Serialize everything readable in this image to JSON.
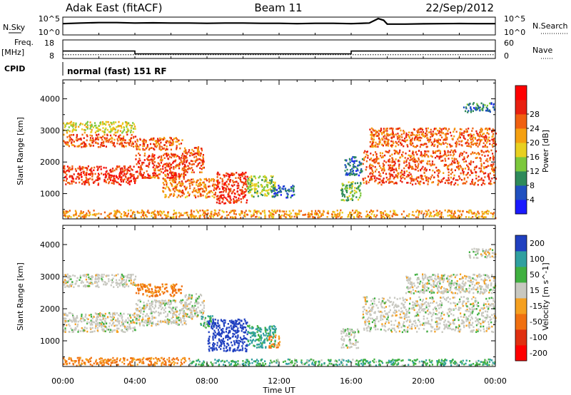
{
  "header": {
    "station": "Adak East (fitACF)",
    "beam": "Beam 11",
    "date": "22/Sep/2012"
  },
  "strips": {
    "nsky_label": "N.Sky",
    "nsearch_label": "N.Search",
    "nsky_ticks": [
      "10^5",
      "10^0"
    ],
    "nsearch_ticks": [
      "10^5",
      "10^0"
    ],
    "freq_label": "Freq.",
    "freq_unit": "[MHz]",
    "freq_ticks": [
      "18",
      "8"
    ],
    "nave_label": "Nave",
    "nave_ticks": [
      "60",
      "0"
    ],
    "cpid_label": "CPID",
    "cpid_text": "normal (fast) 151 RF"
  },
  "axes": {
    "ylabel": "Slant Range [km]",
    "xlabel": "Time UT",
    "yticks": [
      "1000",
      "2000",
      "3000",
      "4000"
    ],
    "xticks": [
      "00:00",
      "04:00",
      "08:00",
      "12:00",
      "16:00",
      "20:00",
      "00:00"
    ]
  },
  "colors": {
    "ground_scatter": "#c8c8c0",
    "power_scale": [
      "#1a1aff",
      "#2050c0",
      "#2e8a5a",
      "#7cc83c",
      "#e8d020",
      "#f5a010",
      "#f06010",
      "#e82010",
      "#ff0000"
    ],
    "velocity_scale": [
      "#2040c0",
      "#30a0a0",
      "#40b040",
      "#c8c8c0",
      "#f5a020",
      "#f07010",
      "#e03010",
      "#ff0000"
    ]
  },
  "chart_data": [
    {
      "type": "line",
      "title": "N.Sky / N.Search",
      "x": [
        0,
        1,
        2,
        3,
        4,
        5,
        6,
        7,
        8,
        9,
        10,
        11,
        12,
        13,
        14,
        15,
        16,
        17,
        17.5,
        17.8,
        18,
        19,
        20,
        21,
        22,
        23,
        24
      ],
      "series": [
        {
          "name": "N.Sky",
          "values": [
            2000,
            3000,
            4000,
            4000,
            3000,
            3500,
            3000,
            3000,
            2500,
            3000,
            3000,
            2500,
            2500,
            2000,
            2500,
            2500,
            2000,
            3000,
            60000,
            20000,
            1500,
            1500,
            1800,
            2000,
            2200,
            2000,
            2000
          ]
        },
        {
          "name": "N.Search",
          "values": [
            1,
            1,
            1,
            1,
            1,
            1,
            1,
            1,
            1,
            1,
            1,
            1,
            1,
            1,
            1,
            1,
            1,
            1,
            1,
            1,
            1,
            1,
            1,
            1,
            1,
            1,
            1
          ]
        }
      ],
      "yscale": "log",
      "xlim": [
        0,
        24
      ],
      "ylim": [
        1,
        100000
      ]
    },
    {
      "type": "line",
      "title": "Freq. / Nave",
      "x": [
        0,
        4,
        4,
        16,
        16,
        24
      ],
      "series": [
        {
          "name": "Freq.",
          "values": [
            12,
            12,
            10.5,
            10.5,
            12,
            12
          ]
        },
        {
          "name": "Nave",
          "values": [
            12,
            12,
            12,
            12,
            12,
            12
          ]
        }
      ],
      "xlim": [
        0,
        24
      ],
      "ylim": [
        8,
        18
      ]
    },
    {
      "type": "heatmap",
      "title": "Power [dB]",
      "xlabel": "Time UT",
      "ylabel": "Slant Range [km]",
      "xlim": [
        0,
        24
      ],
      "ylim": [
        200,
        4600
      ],
      "colorbar_label": "Power [dB]",
      "colorbar_ticks": [
        4,
        8,
        12,
        16,
        20,
        24,
        28
      ],
      "colorbar_range": [
        0,
        32
      ],
      "regions": [
        {
          "t": [
            0.0,
            4.0
          ],
          "r": [
            1300,
            1900
          ],
          "value": 29
        },
        {
          "t": [
            0.0,
            4.0
          ],
          "r": [
            2500,
            2900
          ],
          "value": 27
        },
        {
          "t": [
            0.0,
            4.0
          ],
          "r": [
            2950,
            3300
          ],
          "value": 18
        },
        {
          "t": [
            4.0,
            6.8
          ],
          "r": [
            1500,
            2300
          ],
          "value": 28
        },
        {
          "t": [
            4.0,
            6.6
          ],
          "r": [
            2400,
            2800
          ],
          "value": 26
        },
        {
          "t": [
            6.6,
            7.8
          ],
          "r": [
            1700,
            2500
          ],
          "value": 27
        },
        {
          "t": [
            5.5,
            8.5
          ],
          "r": [
            900,
            1500
          ],
          "value": 24
        },
        {
          "t": [
            8.5,
            10.2
          ],
          "r": [
            700,
            1700
          ],
          "value": 29
        },
        {
          "t": [
            10.2,
            11.8
          ],
          "r": [
            900,
            1600
          ],
          "value": 15
        },
        {
          "t": [
            11.6,
            12.8
          ],
          "r": [
            900,
            1300
          ],
          "value": 7
        },
        {
          "t": [
            15.4,
            16.5
          ],
          "r": [
            800,
            1400
          ],
          "value": 13
        },
        {
          "t": [
            15.6,
            16.6
          ],
          "r": [
            1600,
            2200
          ],
          "value": 7
        },
        {
          "t": [
            16.6,
            24.0
          ],
          "r": [
            1300,
            2400
          ],
          "value": 27
        },
        {
          "t": [
            17.0,
            24.0
          ],
          "r": [
            2500,
            3100
          ],
          "value": 26
        },
        {
          "t": [
            22.2,
            24.0
          ],
          "r": [
            3600,
            3900
          ],
          "value": 8
        },
        {
          "t": [
            0.0,
            24.0
          ],
          "r": [
            250,
            500
          ],
          "value": 23
        }
      ]
    },
    {
      "type": "heatmap",
      "title": "Velocity [m s-1]",
      "xlabel": "Time UT",
      "ylabel": "Slant Range [km]",
      "xlim": [
        0,
        24
      ],
      "ylim": [
        200,
        4600
      ],
      "colorbar_label": "Velocity [m s^-1]",
      "colorbar_ticks": [
        200,
        100,
        50,
        15,
        -15,
        -50,
        -100,
        -200
      ],
      "colorbar_range": [
        -300,
        300
      ],
      "regions": [
        {
          "t": [
            0.0,
            4.0
          ],
          "r": [
            1300,
            1900
          ],
          "value": 0
        },
        {
          "t": [
            0.0,
            4.0
          ],
          "r": [
            2700,
            3100
          ],
          "value": 0
        },
        {
          "t": [
            4.0,
            6.8
          ],
          "r": [
            1500,
            2300
          ],
          "value": 0
        },
        {
          "t": [
            4.0,
            6.6
          ],
          "r": [
            2400,
            2800
          ],
          "value": -40
        },
        {
          "t": [
            6.6,
            7.8
          ],
          "r": [
            1700,
            2500
          ],
          "value": 0
        },
        {
          "t": [
            7.6,
            8.4
          ],
          "r": [
            1400,
            1800
          ],
          "value": 30
        },
        {
          "t": [
            8.0,
            10.2
          ],
          "r": [
            700,
            1700
          ],
          "value": 120
        },
        {
          "t": [
            10.2,
            11.8
          ],
          "r": [
            800,
            1500
          ],
          "value": 40
        },
        {
          "t": [
            11.4,
            12.0
          ],
          "r": [
            800,
            1200
          ],
          "value": -40
        },
        {
          "t": [
            15.4,
            16.4
          ],
          "r": [
            800,
            1400
          ],
          "value": 0
        },
        {
          "t": [
            16.6,
            24.0
          ],
          "r": [
            1300,
            2400
          ],
          "value": 0
        },
        {
          "t": [
            19.0,
            24.0
          ],
          "r": [
            2500,
            3100
          ],
          "value": 0
        },
        {
          "t": [
            22.5,
            24.0
          ],
          "r": [
            3600,
            3900
          ],
          "value": 0
        },
        {
          "t": [
            7.0,
            24.0
          ],
          "r": [
            250,
            450
          ],
          "value": 30
        },
        {
          "t": [
            0.0,
            7.0
          ],
          "r": [
            250,
            500
          ],
          "value": -40
        }
      ]
    }
  ]
}
